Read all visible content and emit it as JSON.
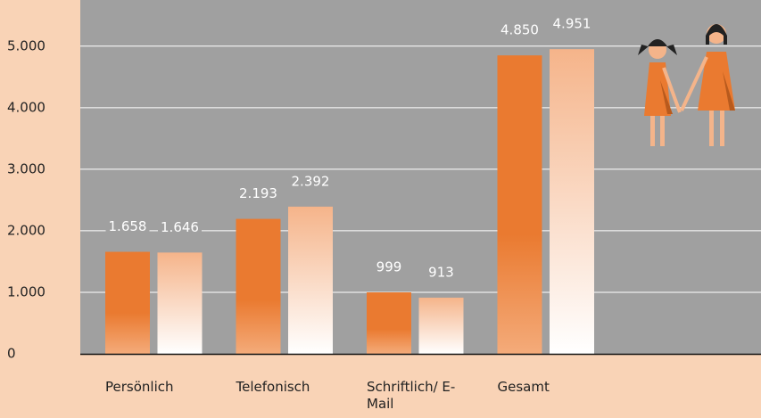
{
  "chart_data": {
    "type": "bar",
    "categories": [
      "Persönlich",
      "Telefonisch",
      "Schriftlich/ E-Mail",
      "Gesamt"
    ],
    "series": [
      {
        "color": "#ea7a30",
        "values": [
          1658,
          2193,
          999,
          4850
        ],
        "value_labels": [
          "1.658",
          "2.193",
          "999",
          "4.850"
        ]
      },
      {
        "color": "#f5b48a",
        "values": [
          1646,
          2392,
          913,
          4951
        ],
        "value_labels": [
          "1.646",
          "2.392",
          "913",
          "4.951"
        ]
      }
    ],
    "ylim": [
      0,
      5750
    ],
    "yticks": [
      0,
      {
        "value": 1000,
        "label": "1.000"
      },
      {
        "value": 2000,
        "label": "2.000"
      },
      {
        "value": 3000,
        "label": "3.000"
      },
      {
        "value": 4000,
        "label": "4.000"
      },
      {
        "value": 5000,
        "label": "5.000"
      }
    ],
    "grid": true
  }
}
